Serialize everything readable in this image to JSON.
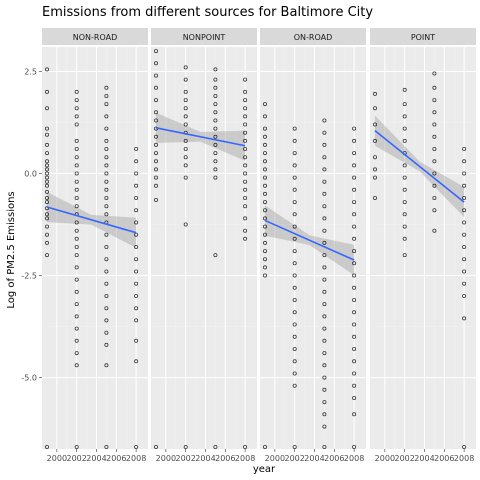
{
  "chart_data": {
    "type": "scatter",
    "title": "Emissions from different sources for Baltimore City",
    "xlabel": "year",
    "ylabel": "Log of PM2.5 Emissions",
    "xlim": [
      1998.5,
      2009.2
    ],
    "ylim": [
      -6.75,
      3.1
    ],
    "x_ticks": [
      2000,
      2002,
      2004,
      2006,
      2008
    ],
    "x_tick_labels": [
      "2000",
      "2002",
      "2004",
      "2006",
      "2008"
    ],
    "y_ticks": [
      2.5,
      0.0,
      -2.5,
      -5.0
    ],
    "y_tick_labels": [
      "2.5",
      "0.0",
      "-2.5",
      "-5.0"
    ],
    "grid": true,
    "years": [
      1999,
      2002,
      2005,
      2008
    ],
    "panels": [
      {
        "name": "NON-ROAD",
        "points": {
          "1999": [
            2.55,
            2.0,
            1.6,
            1.1,
            0.95,
            0.7,
            0.5,
            0.3,
            0.2,
            0.1,
            0.0,
            -0.1,
            -0.2,
            -0.3,
            -0.45,
            -0.6,
            -0.7,
            -0.85,
            -1.0,
            -1.1,
            -1.3,
            -1.5,
            -1.7,
            -2.0,
            -6.7
          ],
          "2002": [
            2.0,
            1.8,
            1.6,
            1.4,
            1.2,
            0.8,
            0.6,
            0.4,
            0.2,
            0.0,
            -0.2,
            -0.4,
            -0.6,
            -0.8,
            -1.0,
            -1.2,
            -1.4,
            -1.6,
            -1.8,
            -2.0,
            -2.3,
            -2.6,
            -2.9,
            -3.2,
            -3.5,
            -3.8,
            -4.1,
            -4.4,
            -4.7,
            -6.7
          ],
          "2005": [
            2.1,
            1.9,
            1.7,
            1.4,
            1.1,
            0.8,
            0.6,
            0.4,
            0.2,
            0.0,
            -0.2,
            -0.4,
            -0.6,
            -0.8,
            -1.0,
            -1.2,
            -1.5,
            -1.8,
            -2.1,
            -2.4,
            -2.7,
            -3.0,
            -3.3,
            -3.6,
            -3.9,
            -4.2,
            -4.7,
            -6.7
          ],
          "2008": [
            0.6,
            0.3,
            0.0,
            -0.3,
            -0.6,
            -0.9,
            -1.2,
            -1.5,
            -1.8,
            -2.1,
            -2.4,
            -2.7,
            -3.0,
            -3.3,
            -3.6,
            -4.1,
            -4.6,
            -6.7
          ]
        },
        "trend": [
          [
            1999,
            -0.82
          ],
          [
            2008,
            -1.45
          ]
        ]
      },
      {
        "name": "NONPOINT",
        "points": {
          "1999": [
            3.0,
            2.7,
            2.4,
            2.1,
            1.8,
            1.5,
            1.3,
            1.1,
            0.9,
            0.7,
            0.5,
            0.3,
            0.1,
            -0.1,
            -0.3,
            -0.65,
            -6.7
          ],
          "2002": [
            2.6,
            2.3,
            2.0,
            1.8,
            1.6,
            1.4,
            1.2,
            1.0,
            0.8,
            0.6,
            0.4,
            0.2,
            -0.1,
            -1.25,
            -6.7
          ],
          "2005": [
            2.55,
            2.3,
            2.1,
            1.9,
            1.7,
            1.5,
            1.3,
            1.1,
            0.9,
            0.7,
            0.5,
            0.3,
            0.1,
            -0.1,
            -2.0,
            -6.7
          ],
          "2008": [
            2.3,
            2.0,
            1.8,
            1.6,
            1.4,
            1.2,
            1.0,
            0.8,
            0.6,
            0.4,
            0.2,
            0.0,
            -0.2,
            -0.4,
            -0.6,
            -0.8,
            -1.1,
            -1.4,
            -1.6,
            -6.7
          ]
        },
        "trend": [
          [
            1999,
            1.12
          ],
          [
            2008,
            0.68
          ]
        ]
      },
      {
        "name": "ON-ROAD",
        "points": {
          "1999": [
            1.7,
            1.4,
            1.1,
            0.9,
            0.7,
            0.5,
            0.3,
            0.1,
            -0.1,
            -0.3,
            -0.5,
            -0.7,
            -0.9,
            -1.1,
            -1.3,
            -1.5,
            -1.7,
            -1.9,
            -2.1,
            -2.3,
            -2.5,
            -6.7
          ],
          "2002": [
            1.1,
            0.8,
            0.5,
            0.2,
            -0.1,
            -0.4,
            -0.7,
            -1.0,
            -1.3,
            -1.6,
            -1.9,
            -2.2,
            -2.5,
            -2.8,
            -3.1,
            -3.4,
            -3.7,
            -4.0,
            -4.3,
            -4.6,
            -4.9,
            -5.2,
            -6.7
          ],
          "2005": [
            1.3,
            1.0,
            0.7,
            0.4,
            0.1,
            -0.2,
            -0.5,
            -0.8,
            -1.1,
            -1.4,
            -1.7,
            -2.0,
            -2.3,
            -2.6,
            -2.9,
            -3.2,
            -3.5,
            -3.8,
            -4.1,
            -4.4,
            -4.7,
            -5.0,
            -5.3,
            -5.6,
            -5.9,
            -6.2,
            -6.7
          ],
          "2008": [
            1.1,
            0.8,
            0.5,
            0.2,
            -0.1,
            -0.4,
            -0.7,
            -1.0,
            -1.3,
            -1.6,
            -1.9,
            -2.2,
            -2.5,
            -2.8,
            -3.1,
            -3.4,
            -3.7,
            -4.0,
            -4.3,
            -4.6,
            -4.9,
            -5.2,
            -5.5,
            -5.9,
            -6.7
          ]
        },
        "trend": [
          [
            1999,
            -1.15
          ],
          [
            2008,
            -2.12
          ]
        ]
      },
      {
        "name": "POINT",
        "points": {
          "1999": [
            1.95,
            1.6,
            1.2,
            0.8,
            0.4,
            0.1,
            -0.1,
            -0.6
          ],
          "2002": [
            2.05,
            1.7,
            1.4,
            1.1,
            0.8,
            0.5,
            0.2,
            -0.1,
            -0.4,
            -0.7,
            -1.0,
            -1.3,
            -1.6,
            -2.0
          ],
          "2005": [
            2.45,
            2.1,
            1.8,
            1.5,
            1.2,
            0.9,
            0.6,
            0.3,
            0.0,
            -0.3,
            -0.6,
            -0.9,
            -1.4
          ],
          "2008": [
            0.6,
            0.3,
            0.0,
            -0.3,
            -0.6,
            -0.9,
            -1.2,
            -1.5,
            -1.8,
            -2.1,
            -2.4,
            -2.7,
            -3.0,
            -3.55,
            -6.7
          ]
        },
        "trend": [
          [
            1999,
            1.05
          ],
          [
            2008,
            -0.7
          ]
        ]
      }
    ],
    "colors": {
      "panel_bg": "#ebebeb",
      "strip_bg": "#d9d9d9",
      "grid_major": "#ffffff",
      "grid_minor": "#f2f2f2",
      "point": "#000000",
      "trend": "#3366ff",
      "ribbon": "#999999"
    }
  }
}
